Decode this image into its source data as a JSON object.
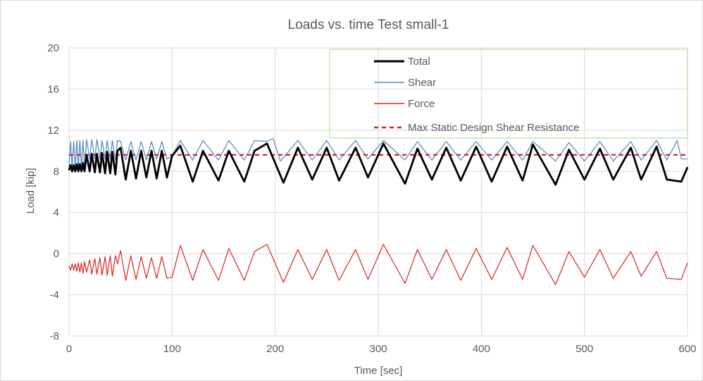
{
  "chart_data": {
    "type": "line",
    "title": "Loads vs. time Test small-1",
    "xlabel": "Time [sec]",
    "ylabel": "Load [kip]",
    "xlim": [
      0,
      600
    ],
    "ylim": [
      -8,
      20
    ],
    "x_ticks": [
      "0",
      "100",
      "200",
      "300",
      "400",
      "500",
      "600"
    ],
    "y_ticks": [
      "-8",
      "-4",
      "0",
      "4",
      "8",
      "12",
      "16",
      "20"
    ],
    "grid": true,
    "legend_position": "top-right",
    "series": [
      {
        "name": "Total",
        "color": "#000000",
        "style": "solid-thick",
        "x": [
          0,
          1.5,
          3,
          4.5,
          6,
          7.5,
          9,
          10.5,
          12,
          13.5,
          15,
          17,
          20,
          22,
          25,
          27,
          30,
          32,
          35,
          37,
          40,
          42,
          45,
          47,
          50,
          55,
          60,
          65,
          70,
          75,
          80,
          85,
          90,
          95,
          100,
          108,
          120,
          130,
          145,
          155,
          170,
          180,
          192,
          208,
          222,
          236,
          250,
          262,
          278,
          290,
          305,
          326,
          338,
          352,
          366,
          380,
          395,
          410,
          425,
          440,
          450,
          472,
          485,
          500,
          515,
          528,
          545,
          555,
          570,
          580,
          594,
          600
        ],
        "y": [
          8.1,
          8.6,
          8.0,
          8.6,
          8.0,
          8.7,
          8.0,
          8.7,
          8.0,
          8.8,
          8.0,
          9.6,
          8.0,
          9.7,
          7.9,
          9.7,
          7.9,
          9.8,
          7.8,
          9.9,
          7.8,
          9.9,
          7.7,
          10.0,
          10.3,
          7.2,
          10.0,
          7.3,
          10.0,
          7.4,
          10.0,
          7.3,
          10.0,
          7.4,
          9.5,
          10.5,
          7.0,
          10.0,
          7.1,
          10.0,
          7.0,
          10.0,
          10.7,
          6.9,
          10.3,
          7.2,
          10.3,
          7.1,
          10.3,
          7.4,
          10.7,
          6.8,
          10.2,
          7.2,
          10.3,
          7.1,
          10.4,
          7.0,
          10.4,
          7.1,
          10.6,
          6.7,
          10.1,
          7.2,
          10.2,
          7.2,
          10.3,
          7.2,
          10.4,
          7.2,
          7.0,
          8.4
        ]
      },
      {
        "name": "Shear",
        "color": "#4a8ac4",
        "style": "solid",
        "x": [
          0,
          1.5,
          3,
          4.5,
          6,
          7.5,
          9,
          10.5,
          12,
          13.5,
          15,
          17,
          20,
          22,
          25,
          27,
          30,
          32,
          35,
          37,
          40,
          42,
          45,
          47,
          50,
          55,
          60,
          65,
          70,
          75,
          80,
          85,
          90,
          95,
          100,
          108,
          120,
          130,
          145,
          155,
          170,
          180,
          192,
          198,
          205,
          222,
          236,
          250,
          262,
          278,
          290,
          305,
          326,
          338,
          352,
          366,
          380,
          395,
          410,
          425,
          440,
          450,
          472,
          485,
          500,
          515,
          528,
          545,
          555,
          570,
          580,
          590,
          594,
          600
        ],
        "y": [
          8.5,
          10.9,
          8.3,
          10.9,
          8.3,
          11.0,
          8.3,
          11.0,
          8.3,
          11.0,
          8.3,
          11.1,
          9.2,
          11.1,
          9.2,
          11.1,
          9.2,
          11.0,
          9.2,
          11.0,
          9.2,
          11.0,
          9.1,
          11.0,
          10.9,
          9.1,
          10.9,
          9.1,
          10.9,
          9.1,
          10.9,
          9.2,
          10.9,
          9.2,
          9.5,
          11.0,
          9.1,
          11.0,
          9.1,
          11.0,
          9.1,
          11.0,
          10.9,
          11.2,
          9.0,
          11.0,
          9.1,
          11.0,
          9.1,
          11.0,
          9.2,
          11.0,
          9.1,
          10.9,
          9.1,
          10.9,
          9.1,
          10.9,
          9.1,
          10.9,
          9.1,
          10.9,
          9.0,
          10.8,
          9.0,
          10.9,
          9.0,
          10.9,
          9.1,
          11.0,
          9.1,
          11.0,
          9.2,
          9.2
        ]
      },
      {
        "name": "Force",
        "color": "#e02020",
        "style": "solid",
        "x": [
          0,
          1.5,
          3,
          4.5,
          6,
          7.5,
          9,
          10.5,
          12,
          13.5,
          15,
          17,
          20,
          22,
          25,
          27,
          30,
          32,
          35,
          37,
          40,
          42,
          45,
          47,
          50,
          55,
          60,
          65,
          70,
          75,
          80,
          85,
          90,
          95,
          100,
          108,
          120,
          130,
          145,
          155,
          170,
          180,
          192,
          208,
          222,
          236,
          250,
          262,
          278,
          290,
          305,
          326,
          338,
          352,
          366,
          380,
          395,
          410,
          425,
          440,
          450,
          472,
          485,
          500,
          515,
          528,
          545,
          555,
          570,
          580,
          594,
          600
        ],
        "y": [
          -1.2,
          -1.6,
          -1.0,
          -1.6,
          -1.0,
          -1.7,
          -0.9,
          -1.8,
          -0.9,
          -1.9,
          -0.8,
          -1.8,
          -0.6,
          -2.0,
          -0.5,
          -2.0,
          -0.4,
          -2.1,
          -0.3,
          -2.1,
          -0.2,
          -2.2,
          -0.2,
          -1.0,
          0.3,
          -2.6,
          -0.2,
          -2.5,
          -0.3,
          -2.4,
          -0.4,
          -2.4,
          -0.3,
          -2.4,
          -2.3,
          0.8,
          -2.6,
          0.4,
          -2.6,
          0.5,
          -2.6,
          0.2,
          0.9,
          -2.8,
          0.4,
          -2.5,
          0.4,
          -2.6,
          0.4,
          -2.5,
          0.9,
          -2.9,
          0.4,
          -2.5,
          0.4,
          -2.6,
          0.5,
          -2.5,
          0.6,
          -2.5,
          0.8,
          -3.0,
          0.2,
          -2.3,
          0.4,
          -2.4,
          0.2,
          -2.2,
          0.2,
          -2.4,
          -2.5,
          -0.9
        ]
      },
      {
        "name": "Max Static Design Shear Resistance",
        "color": "#e02020",
        "style": "dashed",
        "x": [
          0,
          600
        ],
        "y": [
          9.6,
          9.6
        ]
      }
    ]
  }
}
